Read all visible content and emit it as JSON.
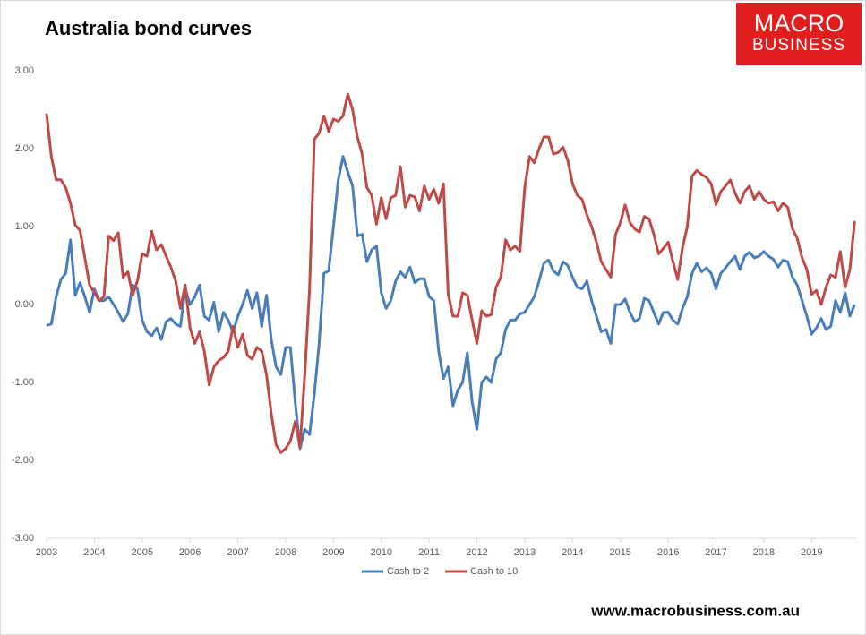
{
  "logo": {
    "line1": "MACRO",
    "line2": "BUSINESS"
  },
  "footer": "www.macrobusiness.com.au",
  "chart_data": {
    "type": "line",
    "title": "Australia bond curves",
    "legend": "bottom",
    "grid": false,
    "xlim": [
      2003,
      2019.95
    ],
    "xticks": [
      2003,
      2004,
      2005,
      2006,
      2007,
      2008,
      2009,
      2010,
      2011,
      2012,
      2013,
      2014,
      2015,
      2016,
      2017,
      2018,
      2019
    ],
    "ylim": [
      -3,
      3
    ],
    "yticks": [
      {
        "value": 3,
        "label": "3.00"
      },
      {
        "value": 2,
        "label": "2.00"
      },
      {
        "value": 1,
        "label": "1.00"
      },
      {
        "value": 0,
        "label": "0.00"
      },
      {
        "value": -1,
        "label": "-1.00"
      },
      {
        "value": -2,
        "label": "-2.00"
      },
      {
        "value": -3,
        "label": "-3.00"
      }
    ],
    "x": [
      2003,
      2003.1,
      2003.2,
      2003.3,
      2003.4,
      2003.5,
      2003.6,
      2003.7,
      2003.8,
      2003.9,
      2004,
      2004.1,
      2004.2,
      2004.3,
      2004.4,
      2004.5,
      2004.6,
      2004.7,
      2004.8,
      2004.9,
      2005,
      2005.1,
      2005.2,
      2005.3,
      2005.4,
      2005.5,
      2005.6,
      2005.7,
      2005.8,
      2005.9,
      2006,
      2006.1,
      2006.2,
      2006.3,
      2006.4,
      2006.5,
      2006.6,
      2006.7,
      2006.8,
      2006.9,
      2007,
      2007.1,
      2007.2,
      2007.3,
      2007.4,
      2007.5,
      2007.6,
      2007.7,
      2007.8,
      2007.9,
      2008,
      2008.1,
      2008.2,
      2008.3,
      2008.4,
      2008.5,
      2008.6,
      2008.7,
      2008.8,
      2008.9,
      2009,
      2009.1,
      2009.2,
      2009.3,
      2009.4,
      2009.5,
      2009.6,
      2009.7,
      2009.8,
      2009.9,
      2010,
      2010.1,
      2010.2,
      2010.3,
      2010.4,
      2010.5,
      2010.6,
      2010.7,
      2010.8,
      2010.9,
      2011,
      2011.1,
      2011.2,
      2011.3,
      2011.4,
      2011.5,
      2011.6,
      2011.7,
      2011.8,
      2011.9,
      2012,
      2012.1,
      2012.2,
      2012.3,
      2012.4,
      2012.5,
      2012.6,
      2012.7,
      2012.8,
      2012.9,
      2013,
      2013.1,
      2013.2,
      2013.3,
      2013.4,
      2013.5,
      2013.6,
      2013.7,
      2013.8,
      2013.9,
      2014,
      2014.1,
      2014.2,
      2014.3,
      2014.4,
      2014.5,
      2014.6,
      2014.7,
      2014.8,
      2014.9,
      2015,
      2015.1,
      2015.2,
      2015.3,
      2015.4,
      2015.5,
      2015.6,
      2015.7,
      2015.8,
      2015.9,
      2016,
      2016.1,
      2016.2,
      2016.3,
      2016.4,
      2016.5,
      2016.6,
      2016.7,
      2016.8,
      2016.9,
      2017,
      2017.1,
      2017.2,
      2017.3,
      2017.4,
      2017.5,
      2017.6,
      2017.7,
      2017.8,
      2017.9,
      2018,
      2018.1,
      2018.2,
      2018.3,
      2018.4,
      2018.5,
      2018.6,
      2018.7,
      2018.8,
      2018.9,
      2019,
      2019.1,
      2019.2,
      2019.3,
      2019.4,
      2019.5,
      2019.6,
      2019.7,
      2019.8,
      2019.9
    ],
    "series": [
      {
        "name": "Cash to 2",
        "color": "#4a7ebb",
        "values": [
          -0.27,
          -0.25,
          0.1,
          0.32,
          0.4,
          0.83,
          0.12,
          0.28,
          0.1,
          -0.1,
          0.2,
          0.05,
          0.05,
          0.1,
          0,
          -0.1,
          -0.22,
          -0.12,
          0.25,
          0.2,
          -0.2,
          -0.35,
          -0.4,
          -0.3,
          -0.45,
          -0.22,
          -0.18,
          -0.25,
          -0.28,
          0.2,
          0,
          0.1,
          0.25,
          -0.15,
          -0.2,
          0.03,
          -0.35,
          -0.1,
          -0.2,
          -0.35,
          -0.15,
          0,
          0.18,
          -0.05,
          0.15,
          -0.28,
          0.12,
          -0.45,
          -0.8,
          -0.9,
          -0.55,
          -0.55,
          -1.25,
          -1.85,
          -1.6,
          -1.67,
          -1.15,
          -0.5,
          0.4,
          0.43,
          1,
          1.6,
          1.9,
          1.7,
          1.52,
          0.88,
          0.9,
          0.55,
          0.7,
          0.75,
          0.15,
          -0.05,
          0.05,
          0.3,
          0.42,
          0.35,
          0.48,
          0.28,
          0.33,
          0.33,
          0.1,
          0.05,
          -0.6,
          -0.95,
          -0.8,
          -1.3,
          -1.1,
          -1,
          -0.62,
          -1.25,
          -1.6,
          -1,
          -0.93,
          -1,
          -0.7,
          -0.62,
          -0.32,
          -0.2,
          -0.2,
          -0.12,
          -0.1,
          0,
          0.1,
          0.3,
          0.53,
          0.57,
          0.43,
          0.38,
          0.55,
          0.5,
          0.35,
          0.22,
          0.2,
          0.3,
          0.05,
          -0.15,
          -0.35,
          -0.32,
          -0.5,
          0,
          0,
          0.07,
          -0.1,
          -0.22,
          -0.18,
          0.08,
          0.05,
          -0.1,
          -0.25,
          -0.1,
          -0.1,
          -0.2,
          -0.25,
          -0.05,
          0.1,
          0.4,
          0.53,
          0.42,
          0.47,
          0.4,
          0.2,
          0.4,
          0.47,
          0.55,
          0.62,
          0.45,
          0.62,
          0.67,
          0.6,
          0.62,
          0.68,
          0.62,
          0.58,
          0.48,
          0.57,
          0.55,
          0.35,
          0.25,
          0.05,
          -0.15,
          -0.38,
          -0.3,
          -0.18,
          -0.32,
          -0.28,
          0.05,
          -0.1,
          0.15,
          -0.15,
          0
        ]
      },
      {
        "name": "Cash to 10",
        "color": "#be4b48",
        "values": [
          2.45,
          1.9,
          1.6,
          1.6,
          1.5,
          1.3,
          1.02,
          0.95,
          0.6,
          0.25,
          0.15,
          0.05,
          0.1,
          0.88,
          0.82,
          0.92,
          0.35,
          0.42,
          0.12,
          0.3,
          0.65,
          0.62,
          0.94,
          0.7,
          0.77,
          0.62,
          0.48,
          0.3,
          -0.05,
          0.25,
          -0.3,
          -0.5,
          -0.35,
          -0.6,
          -1.03,
          -0.8,
          -0.72,
          -0.68,
          -0.6,
          -0.28,
          -0.55,
          -0.38,
          -0.65,
          -0.7,
          -0.55,
          -0.6,
          -0.9,
          -1.4,
          -1.8,
          -1.9,
          -1.85,
          -1.75,
          -1.5,
          -1.83,
          -0.9,
          0.2,
          2.12,
          2.2,
          2.42,
          2.22,
          2.38,
          2.35,
          2.42,
          2.7,
          2.5,
          2.15,
          1.93,
          1.5,
          1.4,
          1.03,
          1.37,
          1.1,
          1.37,
          1.4,
          1.77,
          1.25,
          1.4,
          1.38,
          1.2,
          1.52,
          1.35,
          1.48,
          1.3,
          1.55,
          0.13,
          -0.15,
          -0.15,
          0.15,
          0.12,
          -0.2,
          -0.5,
          -0.08,
          -0.15,
          -0.13,
          0.22,
          0.35,
          0.83,
          0.7,
          0.75,
          0.68,
          1.5,
          1.9,
          1.82,
          2,
          2.15,
          2.15,
          1.93,
          1.95,
          2.02,
          1.85,
          1.55,
          1.4,
          1.35,
          1.15,
          1,
          0.8,
          0.55,
          0.45,
          0.35,
          0.9,
          1.05,
          1.28,
          1.05,
          0.97,
          0.93,
          1.13,
          1.1,
          0.9,
          0.65,
          0.72,
          0.8,
          0.55,
          0.32,
          0.73,
          1,
          1.65,
          1.72,
          1.67,
          1.63,
          1.55,
          1.28,
          1.45,
          1.52,
          1.6,
          1.43,
          1.3,
          1.45,
          1.52,
          1.35,
          1.45,
          1.35,
          1.3,
          1.32,
          1.2,
          1.3,
          1.25,
          0.97,
          0.85,
          0.6,
          0.45,
          0.13,
          0.18,
          0,
          0.22,
          0.38,
          0.35,
          0.68,
          0.22,
          0.45,
          1.07
        ]
      }
    ]
  }
}
